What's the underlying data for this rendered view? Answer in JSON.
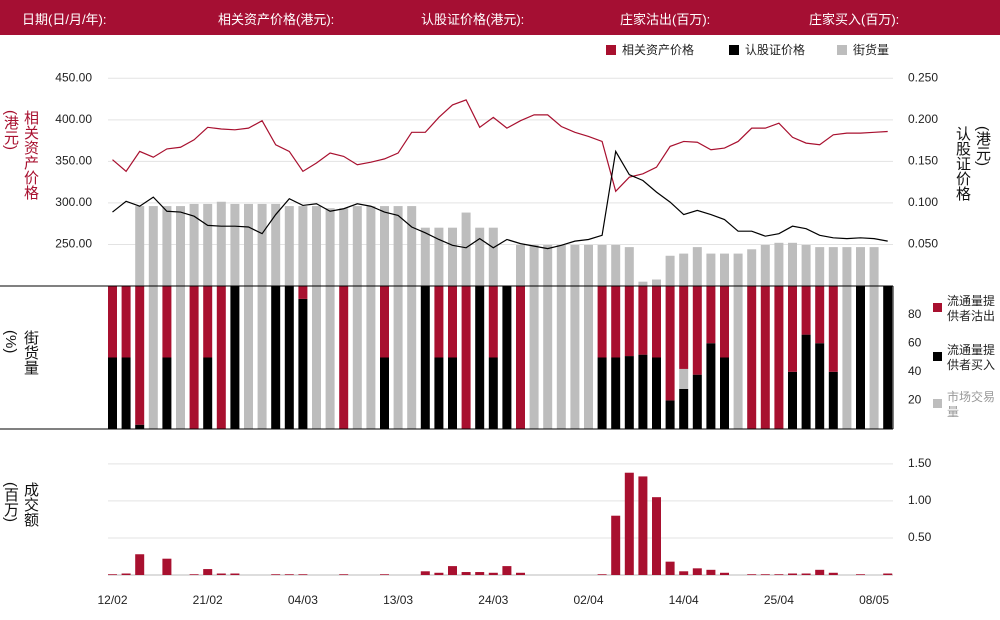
{
  "header": {
    "labels": [
      "日期(日/月/年):",
      "相关资产价格(港元):",
      "认股证价格(港元):",
      "庄家沽出(百万):",
      "庄家买入(百万):"
    ]
  },
  "chart_data": [
    {
      "type": "line",
      "y_label": "相关资产价格(港元)",
      "y2_label": "认股证价格(港元)",
      "ylim": [
        200,
        460
      ],
      "yticks": [
        {
          "value": 250,
          "label": "250.00"
        },
        {
          "value": 300,
          "label": "300.00"
        },
        {
          "value": 350,
          "label": "350.00"
        },
        {
          "value": 400,
          "label": "400.00"
        },
        {
          "value": 450,
          "label": "450.00"
        }
      ],
      "y2lim": [
        0,
        0.26
      ],
      "y2ticks": [
        {
          "value": 0.05,
          "label": "0.050"
        },
        {
          "value": 0.1,
          "label": "0.100"
        },
        {
          "value": 0.15,
          "label": "0.150"
        },
        {
          "value": 0.2,
          "label": "0.200"
        },
        {
          "value": 0.25,
          "label": "0.250"
        }
      ],
      "y3lim": [
        0,
        100
      ],
      "grid": true,
      "series": [
        {
          "name": "相关资产价格",
          "color": "#a8102f",
          "axis": "y",
          "values": [
            352,
            338,
            362,
            355,
            365,
            367,
            376,
            391,
            389,
            388,
            390,
            399,
            370,
            362,
            338,
            348,
            360,
            356,
            346,
            349,
            353,
            360,
            385,
            385,
            403,
            418,
            424,
            391,
            403,
            390,
            399,
            406,
            406,
            392,
            385,
            380,
            374,
            314,
            331,
            335,
            343,
            368,
            374,
            373,
            364,
            366,
            374,
            390,
            390,
            396,
            379,
            372,
            370,
            382,
            384,
            384,
            385,
            386
          ]
        },
        {
          "name": "认股证价格",
          "color": "#000000",
          "axis": "y2",
          "values": [
            0.089,
            0.102,
            0.096,
            0.107,
            0.09,
            0.089,
            0.084,
            0.073,
            0.072,
            0.072,
            0.071,
            0.063,
            0.086,
            0.105,
            0.097,
            0.099,
            0.09,
            0.093,
            0.099,
            0.096,
            0.089,
            0.085,
            0.071,
            0.064,
            0.056,
            0.049,
            0.046,
            0.057,
            0.046,
            0.056,
            0.051,
            0.048,
            0.045,
            0.049,
            0.054,
            0.056,
            0.061,
            0.162,
            0.134,
            0.127,
            0.113,
            0.101,
            0.086,
            0.091,
            0.086,
            0.08,
            0.066,
            0.066,
            0.06,
            0.063,
            0.072,
            0.069,
            0.061,
            0.058,
            0.057,
            0.058,
            0.057,
            0.054
          ]
        },
        {
          "name": "街货量",
          "color": "#bdbdbd",
          "axis": "y3",
          "kind": "bar",
          "values": [
            0,
            0,
            37,
            37,
            37,
            37,
            38,
            38,
            39,
            38,
            38,
            38,
            38,
            37,
            37,
            37,
            36,
            36,
            37,
            37,
            37,
            37,
            37,
            27,
            27,
            27,
            34,
            27,
            27,
            0,
            19,
            19,
            19,
            19,
            19,
            19,
            19,
            19,
            18,
            2,
            3,
            14,
            15,
            18,
            15,
            15,
            15,
            17,
            19,
            20,
            20,
            19,
            18,
            18,
            18,
            18,
            18,
            0
          ]
        }
      ]
    },
    {
      "type": "stacked_bar",
      "y_label": "街货量(%)",
      "ylim": [
        0,
        100
      ],
      "yticks": [
        20,
        40,
        60,
        80
      ],
      "series": [
        {
          "name": "流通量提供者买入",
          "color": "#000000",
          "values": [
            50,
            50,
            3,
            0,
            50,
            0,
            0,
            50,
            0,
            100,
            0,
            0,
            100,
            100,
            91,
            0,
            0,
            0,
            0,
            0,
            50,
            0,
            0,
            100,
            50,
            50,
            0,
            100,
            50,
            100,
            0,
            0,
            0,
            0,
            0,
            0,
            50,
            50,
            51,
            52,
            50,
            20,
            28,
            38,
            60,
            50,
            0,
            0,
            0,
            0,
            40,
            66,
            60,
            40,
            0,
            100,
            0,
            100
          ]
        },
        {
          "name": "市场交易量",
          "color": "#bdbdbd",
          "values": [
            0,
            0,
            0,
            100,
            0,
            100,
            0,
            0,
            0,
            0,
            100,
            100,
            0,
            0,
            0,
            100,
            100,
            0,
            100,
            100,
            0,
            100,
            100,
            0,
            0,
            0,
            0,
            0,
            0,
            0,
            0,
            100,
            100,
            100,
            100,
            100,
            0,
            0,
            0,
            0,
            0,
            0,
            14,
            0,
            0,
            0,
            100,
            0,
            0,
            0,
            0,
            0,
            0,
            0,
            100,
            0,
            100,
            0
          ]
        },
        {
          "name": "流通量提供者沽出",
          "color": "#a8102f",
          "values": [
            50,
            50,
            97,
            0,
            50,
            0,
            100,
            50,
            100,
            0,
            0,
            0,
            0,
            0,
            9,
            0,
            0,
            100,
            0,
            0,
            50,
            0,
            0,
            0,
            50,
            50,
            100,
            0,
            50,
            0,
            100,
            0,
            0,
            0,
            0,
            0,
            50,
            50,
            49,
            48,
            50,
            80,
            58,
            62,
            40,
            50,
            0,
            100,
            100,
            100,
            60,
            34,
            40,
            60,
            0,
            0,
            0,
            0
          ]
        }
      ]
    },
    {
      "type": "bar",
      "y_label": "成交额(百万)",
      "color": "#a8102f",
      "ylim": [
        0,
        1.7
      ],
      "grid": true,
      "yticks": [
        {
          "value": 0.5,
          "label": "0.50"
        },
        {
          "value": 1,
          "label": "1.00"
        },
        {
          "value": 1.5,
          "label": "1.50"
        }
      ],
      "categories": [
        "12/02",
        null,
        null,
        null,
        null,
        null,
        null,
        "21/02",
        null,
        null,
        null,
        null,
        null,
        null,
        "04/03",
        null,
        null,
        null,
        null,
        null,
        null,
        "13/03",
        null,
        null,
        null,
        null,
        null,
        null,
        "24/03",
        null,
        null,
        null,
        null,
        null,
        null,
        "02/04",
        null,
        null,
        null,
        null,
        null,
        null,
        "14/04",
        null,
        null,
        null,
        null,
        null,
        null,
        "25/04",
        null,
        null,
        null,
        null,
        null,
        null,
        "08/05",
        null
      ],
      "values": [
        0.01,
        0.02,
        0.28,
        0,
        0.22,
        0,
        0.01,
        0.08,
        0.02,
        0.02,
        0,
        0,
        0.01,
        0.01,
        0.01,
        0,
        0,
        0.01,
        0,
        0,
        0.01,
        0,
        0,
        0.05,
        0.03,
        0.12,
        0.04,
        0.04,
        0.03,
        0.12,
        0.03,
        0,
        0,
        0,
        0,
        0,
        0.01,
        0.8,
        1.38,
        1.33,
        1.05,
        0.18,
        0.05,
        0.09,
        0.07,
        0.03,
        0,
        0.01,
        0.01,
        0.01,
        0.02,
        0.02,
        0.07,
        0.03,
        0,
        0.01,
        0,
        0.02
      ]
    }
  ]
}
